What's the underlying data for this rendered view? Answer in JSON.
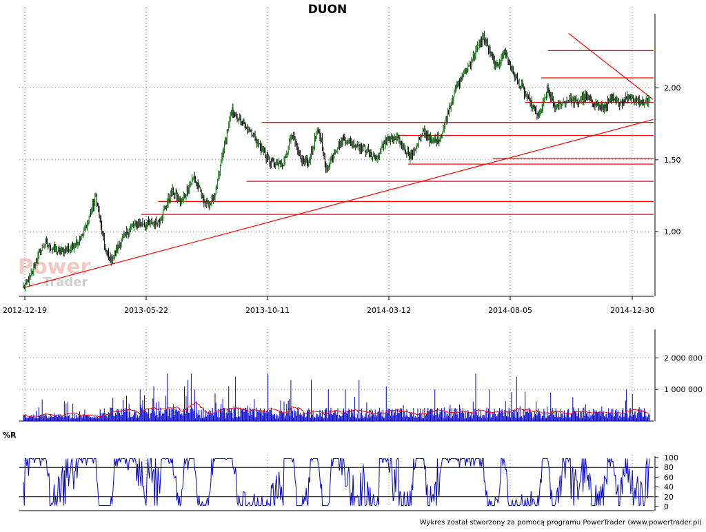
{
  "title": "DUON",
  "footer": "Wykres został stworzony za pomocą programu PowerTrader (www.powertrader.pl)",
  "watermark": {
    "line1": "Power",
    "line2": "Trader"
  },
  "colors": {
    "candle_up": "#006400",
    "candle_down": "#000000",
    "trendline": "#ff0000",
    "volume": "#0000cc",
    "volume_ma": "#ff0000",
    "williams": "#0000cc",
    "grid": "#888888"
  },
  "chart_data": [
    {
      "type": "candlestick",
      "title": "DUON",
      "x_tick_labels": [
        "2012-12-19",
        "2013-05-22",
        "2013-10-11",
        "2014-03-12",
        "2014-08-05",
        "2014-12-30"
      ],
      "y_tick_labels": [
        "1,00",
        "1,50",
        "2,00"
      ],
      "y_ticks": [
        1.0,
        1.5,
        2.0
      ],
      "ylim": [
        0.55,
        2.42
      ],
      "grid": true,
      "close_series": {
        "x_index": [
          0,
          8,
          15,
          25,
          40,
          55,
          70,
          85,
          95,
          100,
          103,
          108,
          115,
          125,
          135,
          145,
          160,
          175,
          185,
          200,
          215,
          225,
          235,
          245,
          255,
          265,
          275,
          290,
          305,
          315,
          325,
          335,
          345,
          350,
          355,
          365,
          375,
          385,
          400,
          415,
          425,
          440,
          455,
          470,
          480,
          490,
          505,
          515,
          525,
          540,
          555,
          565,
          575,
          585,
          595,
          605,
          615,
          625,
          640,
          650,
          660,
          670,
          680,
          690,
          700,
          710,
          720,
          728,
          735
        ],
        "close": [
          0.62,
          0.68,
          0.8,
          0.92,
          0.86,
          0.88,
          0.98,
          1.24,
          0.9,
          0.82,
          0.8,
          0.86,
          0.94,
          1.02,
          1.06,
          1.05,
          1.08,
          1.28,
          1.2,
          1.38,
          1.18,
          1.24,
          1.58,
          1.84,
          1.76,
          1.72,
          1.62,
          1.48,
          1.46,
          1.68,
          1.5,
          1.48,
          1.7,
          1.64,
          1.42,
          1.56,
          1.64,
          1.62,
          1.58,
          1.5,
          1.64,
          1.64,
          1.52,
          1.7,
          1.62,
          1.66,
          1.96,
          2.08,
          2.18,
          2.36,
          2.14,
          2.26,
          2.1,
          2.0,
          1.9,
          1.8,
          1.98,
          1.86,
          1.92,
          1.9,
          1.94,
          1.9,
          1.86,
          1.92,
          1.9,
          1.94,
          1.92,
          1.9,
          1.92
        ]
      },
      "support_resistance_levels": [
        2.26,
        2.07,
        1.9,
        1.76,
        1.67,
        1.51,
        1.47,
        1.35,
        1.21,
        1.12
      ],
      "trendlines": [
        {
          "from": {
            "x_index": 0,
            "y": 0.61
          },
          "to": {
            "x_index": 735,
            "y": 1.78
          }
        },
        {
          "from": {
            "x_index": 640,
            "y": 2.38
          },
          "to": {
            "x_index": 735,
            "y": 1.92
          }
        }
      ]
    },
    {
      "type": "bar",
      "title": "",
      "y_tick_labels": [
        "1 000 000",
        "2 000 000"
      ],
      "y_ticks": [
        1000000,
        2000000
      ],
      "ylim": [
        0,
        2900000
      ],
      "moving_average_color": "#ff0000"
    },
    {
      "type": "line",
      "title": "%R",
      "y_tick_labels": [
        "100",
        "80",
        "60",
        "40",
        "20",
        "0"
      ],
      "y_ticks": [
        100,
        80,
        60,
        40,
        20,
        0
      ],
      "ylim": [
        0,
        100
      ],
      "reference_lines": [
        80,
        20
      ]
    }
  ]
}
